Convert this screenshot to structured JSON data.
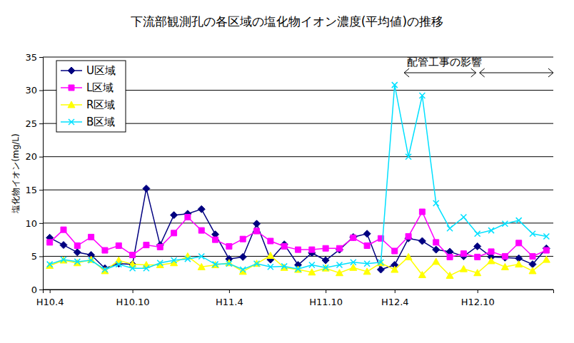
{
  "chart_data": {
    "type": "line",
    "title": "下流部観測孔の各区域の塩化物イオン濃度(平均値)の推移",
    "y_label": "塩化物イオン(mg/L)",
    "annotation": "配管工事の影響",
    "categories": [
      "H10.4",
      null,
      null,
      null,
      null,
      null,
      "H10.10",
      null,
      null,
      null,
      null,
      null,
      null,
      "H11.4",
      null,
      null,
      null,
      null,
      null,
      null,
      "H11.10",
      null,
      null,
      null,
      null,
      "H12.4",
      null,
      null,
      null,
      null,
      null,
      "H12.10",
      null,
      null,
      null,
      null,
      null
    ],
    "series": [
      {
        "name": "U区域",
        "color": "#000080",
        "marker": "diamond",
        "values": [
          7.8,
          6.7,
          5.6,
          5.2,
          3.2,
          3.9,
          3.8,
          15.2,
          6.7,
          11.2,
          11.4,
          12.1,
          8.3,
          4.6,
          4.9,
          9.9,
          4.5,
          6.8,
          3.7,
          5.5,
          4.4,
          6.0,
          7.9,
          8.4,
          3.0,
          3.7,
          7.7,
          7.3,
          6.0,
          5.7,
          5.0,
          6.5,
          4.9,
          4.8,
          4.7,
          3.8,
          6.2
        ]
      },
      {
        "name": "L区域",
        "color": "#ff00ff",
        "marker": "square",
        "values": [
          7.1,
          9.0,
          6.6,
          7.9,
          5.9,
          6.6,
          5.2,
          6.7,
          6.4,
          8.5,
          10.9,
          8.9,
          7.5,
          6.5,
          7.6,
          8.8,
          7.3,
          6.5,
          6.0,
          6.0,
          6.2,
          6.2,
          7.8,
          6.6,
          7.7,
          5.8,
          8.0,
          11.7,
          7.1,
          4.9,
          5.4,
          4.9,
          5.7,
          5.0,
          7.0,
          5.0,
          5.9
        ]
      },
      {
        "name": "R区域",
        "color": "#ffff00",
        "marker": "triangle",
        "values": [
          3.6,
          4.4,
          4.0,
          4.5,
          2.8,
          4.4,
          3.8,
          3.7,
          3.7,
          4.0,
          5.0,
          3.4,
          3.7,
          4.0,
          2.7,
          3.9,
          5.1,
          3.3,
          3.0,
          2.6,
          3.2,
          2.5,
          3.3,
          2.7,
          4.0,
          3.0,
          4.9,
          2.2,
          4.2,
          2.1,
          3.1,
          2.5,
          4.3,
          3.4,
          3.8,
          2.8,
          4.5
        ]
      },
      {
        "name": "B区域",
        "color": "#00e0ff",
        "marker": "x",
        "values": [
          3.8,
          4.5,
          4.2,
          4.4,
          3.0,
          3.8,
          3.2,
          3.2,
          4.0,
          4.4,
          4.6,
          5.0,
          3.8,
          3.9,
          3.0,
          3.9,
          3.4,
          3.5,
          3.1,
          3.7,
          3.3,
          3.7,
          4.1,
          3.9,
          4.1,
          30.8,
          20.0,
          29.2,
          13.0,
          9.2,
          10.9,
          8.4,
          8.9,
          9.9,
          10.4,
          8.4,
          8.0
        ]
      }
    ],
    "ylim": [
      0,
      35
    ],
    "yticks": [
      0,
      5,
      10,
      15,
      20,
      25,
      30,
      35
    ],
    "grid": true,
    "legend": "upper left"
  }
}
